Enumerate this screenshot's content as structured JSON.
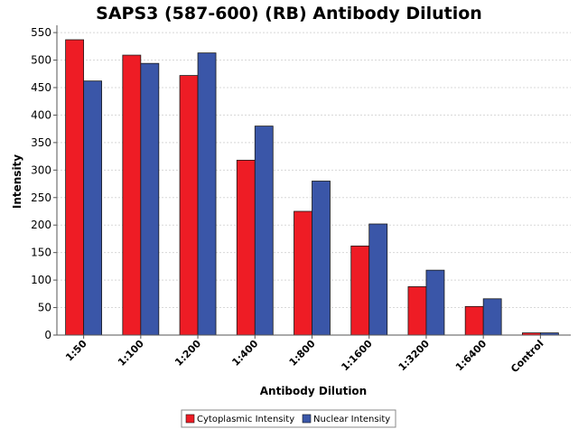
{
  "chart_data": {
    "type": "bar",
    "title": "SAPS3 (587-600) (RB) Antibody Dilution",
    "xlabel": "Antibody Dilution",
    "ylabel": "Intensity",
    "categories": [
      "1:50",
      "1:100",
      "1:200",
      "1:400",
      "1:800",
      "1:1600",
      "1:3200",
      "1:6400",
      "Control"
    ],
    "series": [
      {
        "name": "Cytoplasmic Intensity",
        "color": "#ee1c25",
        "values": [
          537,
          509,
          472,
          318,
          225,
          162,
          88,
          52,
          4
        ]
      },
      {
        "name": "Nuclear Intensity",
        "color": "#3a56a8",
        "values": [
          462,
          494,
          513,
          380,
          280,
          202,
          118,
          66,
          4
        ]
      }
    ],
    "ylim": [
      0,
      560
    ],
    "yticks": [
      0,
      50,
      100,
      150,
      200,
      250,
      300,
      350,
      400,
      450,
      500,
      550
    ],
    "grid": "horizontal dashed",
    "legend_position": "bottom-center"
  }
}
